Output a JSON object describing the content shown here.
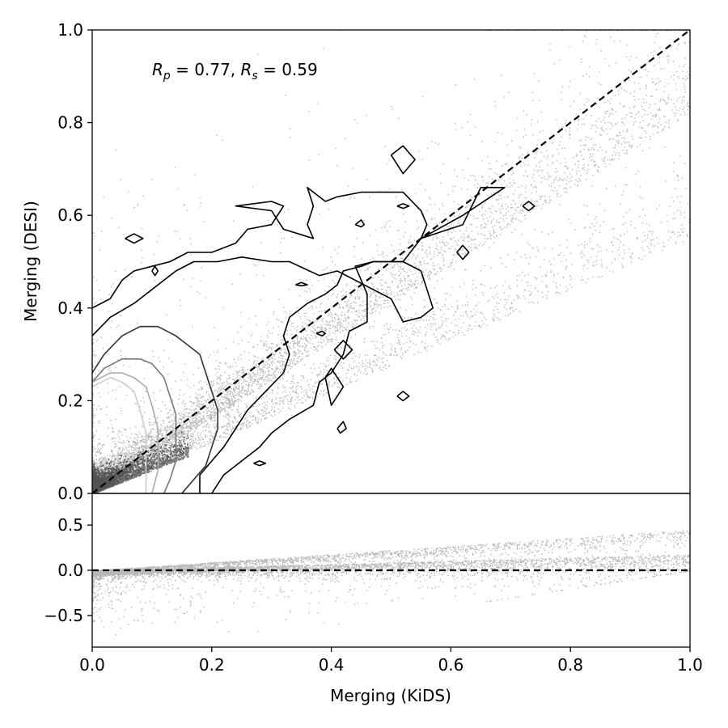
{
  "chart_data": [
    {
      "panel": "main",
      "type": "scatter",
      "xlabel": "",
      "ylabel": "Merging (DESI)",
      "xlim": [
        0.0,
        1.0
      ],
      "ylim": [
        0.0,
        1.0
      ],
      "xticks": [
        "0.0",
        "0.2",
        "0.4",
        "0.6",
        "0.8",
        "1.0"
      ],
      "yticks": [
        "0.0",
        "0.2",
        "0.4",
        "0.6",
        "0.8",
        "1.0"
      ],
      "annotation": {
        "rp_label": "R_p = 0.77",
        "rs_label": "R_s = 0.59",
        "rp": 0.77,
        "rs": 0.59
      },
      "reference_line": {
        "style": "dashed",
        "color": "#000000",
        "from": [
          0.0,
          0.0
        ],
        "to": [
          1.0,
          1.0
        ]
      },
      "point_color": "#000000",
      "grid": false,
      "contours": [
        {
          "color": "#000000",
          "points": [
            [
              0.0,
              0.4
            ],
            [
              0.03,
              0.42
            ],
            [
              0.05,
              0.46
            ],
            [
              0.07,
              0.48
            ],
            [
              0.1,
              0.49
            ],
            [
              0.13,
              0.5
            ],
            [
              0.16,
              0.52
            ],
            [
              0.2,
              0.52
            ],
            [
              0.24,
              0.54
            ],
            [
              0.26,
              0.57
            ],
            [
              0.3,
              0.58
            ],
            [
              0.32,
              0.62
            ],
            [
              0.3,
              0.63
            ],
            [
              0.24,
              0.62
            ],
            [
              0.3,
              0.61
            ],
            [
              0.32,
              0.57
            ],
            [
              0.37,
              0.55
            ],
            [
              0.36,
              0.58
            ],
            [
              0.37,
              0.62
            ],
            [
              0.36,
              0.66
            ],
            [
              0.39,
              0.63
            ],
            [
              0.41,
              0.64
            ],
            [
              0.45,
              0.65
            ],
            [
              0.47,
              0.65
            ],
            [
              0.52,
              0.65
            ],
            [
              0.55,
              0.61
            ],
            [
              0.56,
              0.58
            ],
            [
              0.55,
              0.55
            ],
            [
              0.62,
              0.58
            ],
            [
              0.65,
              0.66
            ],
            [
              0.69,
              0.66
            ],
            [
              0.62,
              0.6
            ],
            [
              0.55,
              0.55
            ],
            [
              0.52,
              0.5
            ],
            [
              0.47,
              0.5
            ],
            [
              0.45,
              0.49
            ],
            [
              0.42,
              0.48
            ],
            [
              0.41,
              0.45
            ],
            [
              0.39,
              0.43
            ],
            [
              0.36,
              0.41
            ],
            [
              0.33,
              0.38
            ],
            [
              0.32,
              0.34
            ],
            [
              0.33,
              0.3
            ],
            [
              0.32,
              0.26
            ],
            [
              0.29,
              0.22
            ],
            [
              0.26,
              0.18
            ],
            [
              0.24,
              0.14
            ],
            [
              0.22,
              0.1
            ],
            [
              0.2,
              0.07
            ],
            [
              0.18,
              0.04
            ],
            [
              0.18,
              0.0
            ]
          ]
        },
        {
          "color": "#000000",
          "points": [
            [
              0.0,
              0.34
            ],
            [
              0.03,
              0.38
            ],
            [
              0.07,
              0.41
            ],
            [
              0.1,
              0.44
            ],
            [
              0.14,
              0.48
            ],
            [
              0.17,
              0.5
            ],
            [
              0.21,
              0.5
            ],
            [
              0.25,
              0.51
            ],
            [
              0.3,
              0.5
            ],
            [
              0.33,
              0.5
            ],
            [
              0.38,
              0.47
            ],
            [
              0.41,
              0.48
            ],
            [
              0.44,
              0.46
            ],
            [
              0.47,
              0.44
            ],
            [
              0.5,
              0.42
            ],
            [
              0.52,
              0.37
            ],
            [
              0.55,
              0.38
            ],
            [
              0.57,
              0.4
            ],
            [
              0.55,
              0.48
            ],
            [
              0.52,
              0.5
            ],
            [
              0.47,
              0.5
            ],
            [
              0.44,
              0.49
            ],
            [
              0.46,
              0.43
            ],
            [
              0.46,
              0.37
            ],
            [
              0.43,
              0.35
            ],
            [
              0.42,
              0.3
            ],
            [
              0.4,
              0.26
            ],
            [
              0.38,
              0.24
            ],
            [
              0.37,
              0.19
            ],
            [
              0.33,
              0.16
            ],
            [
              0.3,
              0.13
            ],
            [
              0.28,
              0.1
            ],
            [
              0.25,
              0.07
            ],
            [
              0.22,
              0.04
            ],
            [
              0.2,
              0.0
            ]
          ]
        },
        {
          "color": "#333333",
          "points": [
            [
              0.0,
              0.26
            ],
            [
              0.02,
              0.3
            ],
            [
              0.05,
              0.34
            ],
            [
              0.08,
              0.36
            ],
            [
              0.11,
              0.36
            ],
            [
              0.14,
              0.34
            ],
            [
              0.16,
              0.32
            ],
            [
              0.18,
              0.3
            ],
            [
              0.19,
              0.26
            ],
            [
              0.2,
              0.22
            ],
            [
              0.21,
              0.18
            ],
            [
              0.21,
              0.14
            ],
            [
              0.2,
              0.1
            ],
            [
              0.19,
              0.06
            ],
            [
              0.17,
              0.03
            ],
            [
              0.15,
              0.0
            ]
          ]
        },
        {
          "color": "#777777",
          "points": [
            [
              0.0,
              0.24
            ],
            [
              0.02,
              0.27
            ],
            [
              0.05,
              0.29
            ],
            [
              0.08,
              0.29
            ],
            [
              0.1,
              0.28
            ],
            [
              0.12,
              0.25
            ],
            [
              0.13,
              0.21
            ],
            [
              0.14,
              0.17
            ],
            [
              0.14,
              0.12
            ],
            [
              0.14,
              0.07
            ],
            [
              0.13,
              0.03
            ],
            [
              0.12,
              0.0
            ]
          ]
        },
        {
          "color": "#aaaaaa",
          "points": [
            [
              0.0,
              0.24
            ],
            [
              0.03,
              0.26
            ],
            [
              0.05,
              0.26
            ],
            [
              0.07,
              0.25
            ],
            [
              0.09,
              0.23
            ],
            [
              0.1,
              0.19
            ],
            [
              0.11,
              0.14
            ],
            [
              0.11,
              0.09
            ],
            [
              0.11,
              0.05
            ],
            [
              0.1,
              0.0
            ]
          ]
        },
        {
          "color": "#cccccc",
          "points": [
            [
              0.0,
              0.23
            ],
            [
              0.03,
              0.25
            ],
            [
              0.05,
              0.24
            ],
            [
              0.07,
              0.22
            ],
            [
              0.08,
              0.18
            ],
            [
              0.09,
              0.13
            ],
            [
              0.09,
              0.08
            ],
            [
              0.09,
              0.04
            ],
            [
              0.09,
              0.0
            ]
          ]
        },
        {
          "color": "#000000",
          "points": [
            [
              0.5,
              0.73
            ],
            [
              0.52,
              0.75
            ],
            [
              0.54,
              0.72
            ],
            [
              0.52,
              0.69
            ],
            [
              0.5,
              0.73
            ]
          ]
        },
        {
          "color": "#000000",
          "points": [
            [
              0.055,
              0.55
            ],
            [
              0.07,
              0.56
            ],
            [
              0.085,
              0.55
            ],
            [
              0.07,
              0.54
            ],
            [
              0.055,
              0.55
            ]
          ]
        },
        {
          "color": "#000000",
          "points": [
            [
              0.61,
              0.52
            ],
            [
              0.62,
              0.535
            ],
            [
              0.63,
              0.52
            ],
            [
              0.62,
              0.505
            ],
            [
              0.61,
              0.52
            ]
          ]
        },
        {
          "color": "#000000",
          "points": [
            [
              0.39,
              0.25
            ],
            [
              0.4,
              0.27
            ],
            [
              0.42,
              0.23
            ],
            [
              0.4,
              0.19
            ],
            [
              0.39,
              0.25
            ]
          ]
        },
        {
          "color": "#000000",
          "points": [
            [
              0.405,
              0.31
            ],
            [
              0.42,
              0.33
            ],
            [
              0.435,
              0.31
            ],
            [
              0.42,
              0.29
            ],
            [
              0.405,
              0.31
            ]
          ]
        },
        {
          "color": "#000000",
          "points": [
            [
              0.72,
              0.62
            ],
            [
              0.73,
              0.63
            ],
            [
              0.74,
              0.62
            ],
            [
              0.73,
              0.61
            ],
            [
              0.72,
              0.62
            ]
          ]
        },
        {
          "color": "#000000",
          "points": [
            [
              0.51,
              0.21
            ],
            [
              0.52,
              0.22
            ],
            [
              0.53,
              0.21
            ],
            [
              0.52,
              0.2
            ],
            [
              0.51,
              0.21
            ]
          ]
        },
        {
          "color": "#000000",
          "points": [
            [
              0.41,
              0.14
            ],
            [
              0.42,
              0.155
            ],
            [
              0.425,
              0.14
            ],
            [
              0.415,
              0.13
            ],
            [
              0.41,
              0.14
            ]
          ]
        },
        {
          "color": "#000000",
          "points": [
            [
              0.27,
              0.065
            ],
            [
              0.28,
              0.07
            ],
            [
              0.29,
              0.065
            ],
            [
              0.28,
              0.06
            ],
            [
              0.27,
              0.065
            ]
          ]
        },
        {
          "color": "#000000",
          "points": [
            [
              0.1,
              0.48
            ],
            [
              0.105,
              0.49
            ],
            [
              0.11,
              0.48
            ],
            [
              0.105,
              0.47
            ],
            [
              0.1,
              0.48
            ]
          ]
        },
        {
          "color": "#000000",
          "points": [
            [
              0.44,
              0.58
            ],
            [
              0.45,
              0.59
            ],
            [
              0.455,
              0.58
            ],
            [
              0.45,
              0.575
            ],
            [
              0.44,
              0.58
            ]
          ]
        },
        {
          "color": "#000000",
          "points": [
            [
              0.51,
              0.62
            ],
            [
              0.52,
              0.625
            ],
            [
              0.53,
              0.62
            ],
            [
              0.52,
              0.615
            ],
            [
              0.51,
              0.62
            ]
          ]
        },
        {
          "color": "#000000",
          "points": [
            [
              0.34,
              0.45
            ],
            [
              0.35,
              0.455
            ],
            [
              0.36,
              0.45
            ],
            [
              0.35,
              0.448
            ],
            [
              0.34,
              0.45
            ]
          ]
        },
        {
          "color": "#000000",
          "points": [
            [
              0.375,
              0.345
            ],
            [
              0.385,
              0.35
            ],
            [
              0.39,
              0.345
            ],
            [
              0.385,
              0.34
            ],
            [
              0.375,
              0.345
            ]
          ]
        }
      ]
    },
    {
      "panel": "residual",
      "type": "scatter",
      "xlabel": "Merging (KiDS)",
      "ylabel": "",
      "xlim": [
        0.0,
        1.0
      ],
      "ylim": [
        -0.85,
        0.85
      ],
      "xticks": [
        "0.0",
        "0.2",
        "0.4",
        "0.6",
        "0.8",
        "1.0"
      ],
      "yticks": [
        "0.5",
        "0.0",
        "−0.5"
      ],
      "ytick_values": [
        0.5,
        0.0,
        -0.5
      ],
      "reference_line": {
        "style": "dashed",
        "color": "#000000",
        "y": 0.0
      },
      "point_color": "#000000",
      "grid": false
    }
  ]
}
